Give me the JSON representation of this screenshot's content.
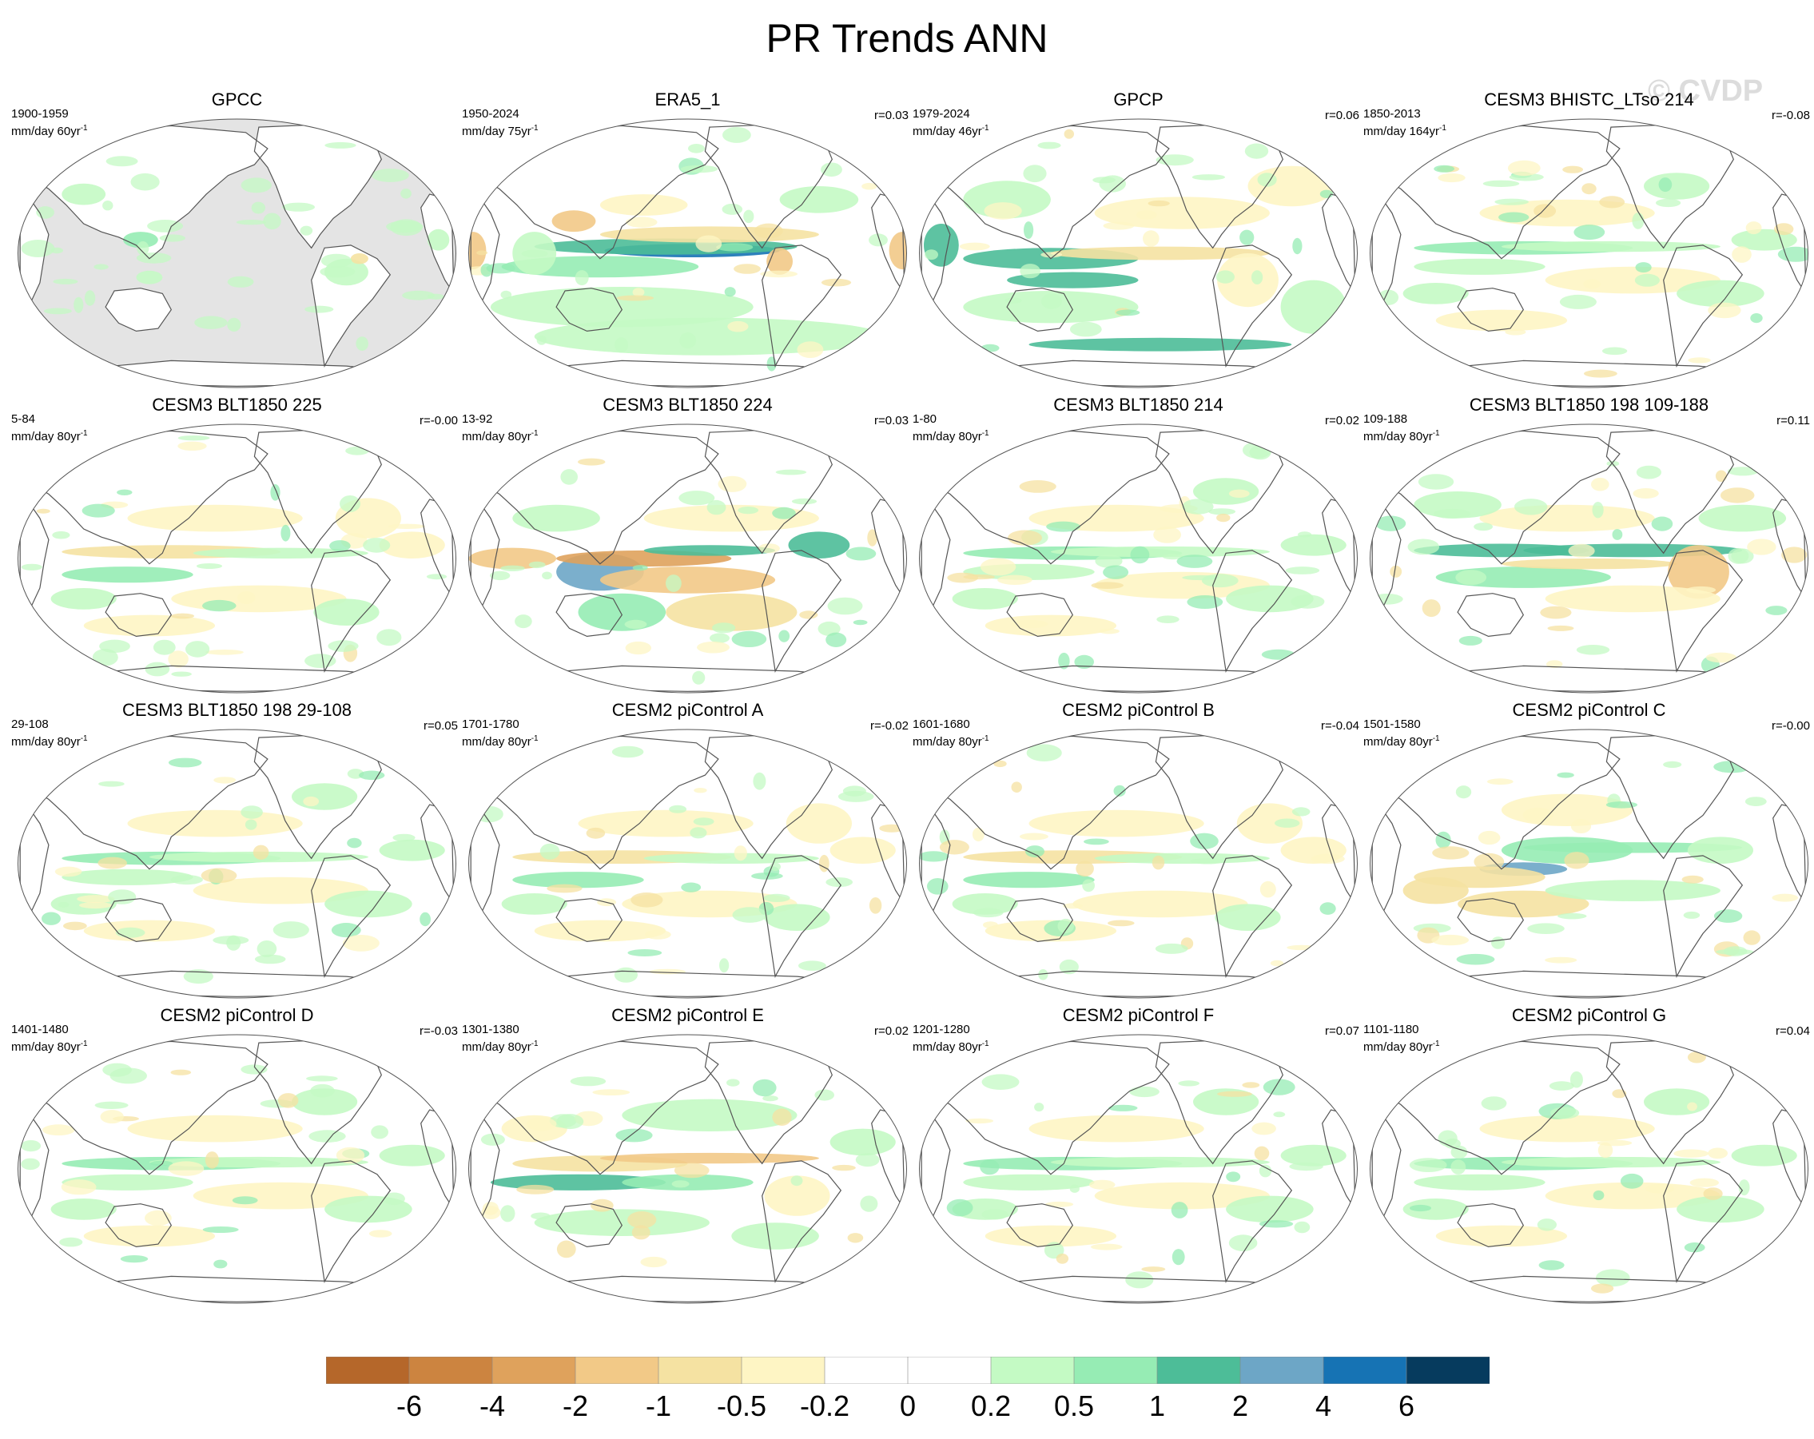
{
  "title": "PR Trends ANN",
  "watermark": "© CVDP",
  "colors": {
    "scale": [
      "#b5672a",
      "#cc8440",
      "#dfa25c",
      "#f2c987",
      "#f5e2a2",
      "#fef5c4",
      "#ffffff",
      "#ffffff",
      "#c4fac4",
      "#96ecb4",
      "#4dbd98",
      "#6da6c6",
      "#1673b4",
      "#063b5e"
    ],
    "land_mask": "#e4e4e4",
    "coast": "#555555"
  },
  "colorbar": {
    "labels": [
      "-6",
      "-4",
      "-2",
      "-1",
      "-0.5",
      "-0.2",
      "0",
      "0.2",
      "0.5",
      "1",
      "2",
      "4",
      "6"
    ]
  },
  "chart_data": {
    "type": "heatmap",
    "projection": "robinson-style global map, centered on Pacific",
    "variable": "precipitation trend",
    "panels": [
      {
        "title": "GPCC",
        "period": "1900-1959",
        "units": "mm/day 60yr",
        "corr": "",
        "pattern": "gpcc"
      },
      {
        "title": "ERA5_1",
        "period": "1950-2024",
        "units": "mm/day 75yr",
        "corr": "r=0.03",
        "pattern": "era5"
      },
      {
        "title": "GPCP",
        "period": "1979-2024",
        "units": "mm/day 46yr",
        "corr": "r=0.06",
        "pattern": "gpcp"
      },
      {
        "title": "CESM3 BHISTC_LTso 214",
        "period": "1850-2013",
        "units": "mm/day 164yr",
        "corr": "r=-0.08",
        "pattern": "weak_wet"
      },
      {
        "title": "CESM3 BLT1850 225",
        "period": "5-84",
        "units": "mm/day 80yr",
        "corr": "r=-0.00",
        "pattern": "weak_dry"
      },
      {
        "title": "CESM3 BLT1850 224",
        "period": "13-92",
        "units": "mm/day 80yr",
        "corr": "r=0.03",
        "pattern": "strong_dipole"
      },
      {
        "title": "CESM3 BLT1850 214",
        "period": "1-80",
        "units": "mm/day 80yr",
        "corr": "r=0.02",
        "pattern": "weak_wet"
      },
      {
        "title": "CESM3 BLT1850 198 109-188",
        "period": "109-188",
        "units": "mm/day 80yr",
        "corr": "r=0.11",
        "pattern": "wet_band"
      },
      {
        "title": "CESM3 BLT1850 198 29-108",
        "period": "29-108",
        "units": "mm/day 80yr",
        "corr": "r=0.05",
        "pattern": "weak_wet"
      },
      {
        "title": "CESM2 piControl A",
        "period": "1701-1780",
        "units": "mm/day 80yr",
        "corr": "r=-0.02",
        "pattern": "weak_dry"
      },
      {
        "title": "CESM2 piControl B",
        "period": "1601-1680",
        "units": "mm/day 80yr",
        "corr": "r=-0.04",
        "pattern": "weak_dry"
      },
      {
        "title": "CESM2 piControl C",
        "period": "1501-1580",
        "units": "mm/day 80yr",
        "corr": "r=-0.00",
        "pattern": "wet_core"
      },
      {
        "title": "CESM2 piControl D",
        "period": "1401-1480",
        "units": "mm/day 80yr",
        "corr": "r=-0.03",
        "pattern": "weak_wet"
      },
      {
        "title": "CESM2 piControl E",
        "period": "1301-1380",
        "units": "mm/day 80yr",
        "corr": "r=0.02",
        "pattern": "dry_band"
      },
      {
        "title": "CESM2 piControl F",
        "period": "1201-1280",
        "units": "mm/day 80yr",
        "corr": "r=0.07",
        "pattern": "weak_wet"
      },
      {
        "title": "CESM2 piControl G",
        "period": "1101-1180",
        "units": "mm/day 80yr",
        "corr": "r=0.04",
        "pattern": "weak_wet"
      }
    ]
  }
}
